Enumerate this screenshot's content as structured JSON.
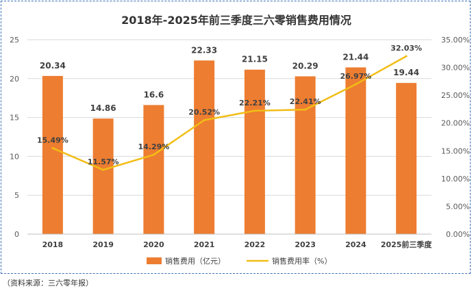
{
  "chart_data": {
    "type": "bar+line",
    "title": "2018年-2025年前三季度三六零销售费用情况",
    "categories": [
      "2018",
      "2019",
      "2020",
      "2021",
      "2022",
      "2023",
      "2024",
      "2025前三季度"
    ],
    "series": [
      {
        "name": "销售费用（亿元）",
        "type": "bar",
        "axis": "left",
        "values": [
          20.34,
          14.86,
          16.6,
          22.33,
          21.15,
          20.29,
          21.44,
          19.44
        ],
        "labels": [
          "20.34",
          "14.86",
          "16.6",
          "22.33",
          "21.15",
          "20.29",
          "21.44",
          "19.44"
        ],
        "color": "#ed7d31"
      },
      {
        "name": "销售费用率（%）",
        "type": "line",
        "axis": "right",
        "values": [
          15.49,
          11.57,
          14.29,
          20.52,
          22.21,
          22.41,
          26.97,
          32.03
        ],
        "labels": [
          "15.49%",
          "11.57%",
          "14.29%",
          "20.52%",
          "22.21%",
          "22.41%",
          "26.97%",
          "32.03%"
        ],
        "color": "#f2bd16"
      }
    ],
    "y_left": {
      "ylim": [
        0,
        25
      ],
      "ticks": [
        0,
        5,
        10,
        15,
        20,
        25
      ],
      "tick_labels": [
        "0",
        "5",
        "10",
        "15",
        "20",
        "25"
      ]
    },
    "y_right": {
      "ylim": [
        0,
        35
      ],
      "ticks": [
        0,
        5,
        10,
        15,
        20,
        25,
        30,
        35
      ],
      "tick_labels": [
        "0.00%",
        "5.00%",
        "10.00%",
        "15.00%",
        "20.00%",
        "25.00%",
        "30.00%",
        "35.00%"
      ]
    },
    "gridlines": true,
    "legend_position": "bottom"
  },
  "source": "（资料来源：三六零年报）"
}
